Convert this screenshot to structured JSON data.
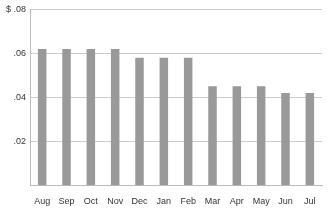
{
  "chart_data": {
    "type": "bar",
    "categories": [
      "Aug",
      "Sep",
      "Oct",
      "Nov",
      "Dec",
      "Jan",
      "Feb",
      "Mar",
      "Apr",
      "May",
      "Jun",
      "Jul"
    ],
    "values": [
      0.062,
      0.062,
      0.062,
      0.062,
      0.058,
      0.058,
      0.058,
      0.045,
      0.045,
      0.045,
      0.042,
      0.042
    ],
    "color": "#999999",
    "ylim": [
      0,
      0.08
    ],
    "yticks": [
      {
        "value": 0.02,
        "label": ".02"
      },
      {
        "value": 0.04,
        "label": ".04"
      },
      {
        "value": 0.06,
        "label": ".06"
      },
      {
        "value": 0.08,
        "label": "$ .08"
      }
    ],
    "grid": true
  }
}
